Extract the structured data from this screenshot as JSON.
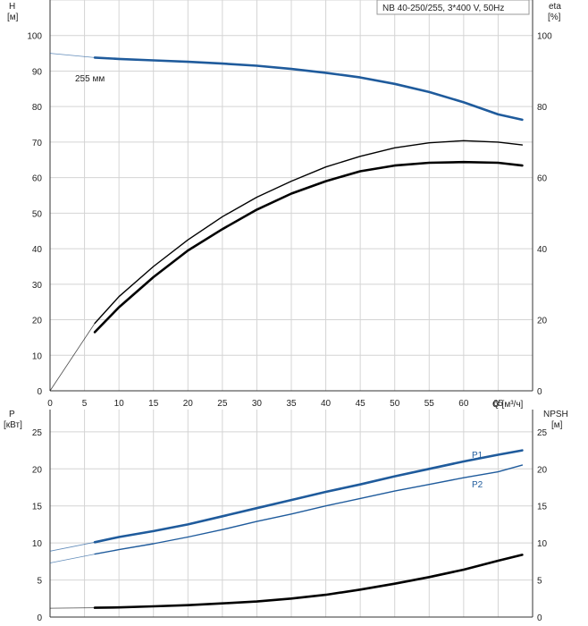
{
  "chart_data": [
    {
      "type": "line",
      "title": "NB 40-250/255, 3*400 V, 50Hz",
      "xlabel": "Q [м³/ч]",
      "ylabel_left": "H [м]",
      "ylabel_left_unit": "[м]",
      "ylabel_left_name": "H",
      "ylabel_right_name": "eta",
      "ylabel_right_unit": "[%]",
      "xlim": [
        0,
        70
      ],
      "ylim_left": [
        0,
        110
      ],
      "ylim_right": [
        0,
        110
      ],
      "x_ticks": [
        0,
        5,
        10,
        15,
        20,
        25,
        30,
        35,
        40,
        45,
        50,
        55,
        60,
        65
      ],
      "y_ticks_left": [
        0,
        10,
        20,
        30,
        40,
        50,
        60,
        70,
        80,
        90,
        100
      ],
      "y_ticks_right": [
        0,
        20,
        40,
        60,
        80,
        100
      ],
      "grid": true,
      "annotation": "255 мм",
      "colors": {
        "head": "#1f5b9c",
        "eta": "#000000",
        "grid": "#d0d0d0"
      },
      "series": [
        {
          "name": "",
          "axis": "left",
          "key": "head",
          "x": [
            0,
            6.5,
            10,
            15,
            20,
            25,
            30,
            35,
            40,
            45,
            50,
            55,
            60,
            65,
            68.5
          ],
          "y": [
            95,
            93.8,
            93.4,
            93,
            92.6,
            92.1,
            91.5,
            90.6,
            89.5,
            88.2,
            86.4,
            84.1,
            81.2,
            77.8,
            76.3
          ],
          "extrapolated_below": 6.5
        },
        {
          "name": "",
          "axis": "right",
          "key": "eta_thin",
          "x": [
            0,
            6.5,
            10,
            15,
            20,
            25,
            30,
            35,
            40,
            45,
            50,
            55,
            60,
            65,
            68.5
          ],
          "y": [
            0,
            19,
            26.5,
            35,
            42.5,
            49,
            54.5,
            59,
            63,
            66,
            68.4,
            69.8,
            70.4,
            70,
            69.2
          ],
          "extrapolated_below": 6.5
        },
        {
          "name": "",
          "axis": "right",
          "key": "eta_thick",
          "x": [
            6.5,
            10,
            15,
            20,
            25,
            30,
            35,
            40,
            45,
            50,
            55,
            60,
            65,
            68.5
          ],
          "y": [
            16.5,
            23.5,
            32,
            39.5,
            45.5,
            51,
            55.5,
            59,
            61.8,
            63.4,
            64.2,
            64.4,
            64.2,
            63.4
          ]
        }
      ]
    },
    {
      "type": "line",
      "xlim": [
        0,
        70
      ],
      "ylim_left": [
        0,
        28
      ],
      "ylim_right": [
        0,
        28
      ],
      "ylabel_left_name": "P",
      "ylabel_left_unit": "[кВт]",
      "ylabel_right_name": "NPSH",
      "ylabel_right_unit": "[м]",
      "y_ticks_left": [
        0,
        5,
        10,
        15,
        20,
        25
      ],
      "y_ticks_right": [
        0,
        5,
        10,
        15,
        20,
        25
      ],
      "grid": true,
      "colors": {
        "p1": "#1f5b9c",
        "p2": "#1f5b9c",
        "npsh": "#000000"
      },
      "series": [
        {
          "name": "P1",
          "axis": "left",
          "key": "p1",
          "x": [
            0,
            6.5,
            10,
            15,
            20,
            25,
            30,
            35,
            40,
            45,
            50,
            55,
            60,
            65,
            68.5
          ],
          "y": [
            8.9,
            10.1,
            10.8,
            11.6,
            12.5,
            13.6,
            14.7,
            15.8,
            16.9,
            17.9,
            19.0,
            20.0,
            21.0,
            21.9,
            22.5
          ],
          "extrapolated_below": 6.5
        },
        {
          "name": "P2",
          "axis": "left",
          "key": "p2",
          "x": [
            0,
            6.5,
            10,
            15,
            20,
            25,
            30,
            35,
            40,
            45,
            50,
            55,
            60,
            65,
            68.5
          ],
          "y": [
            7.3,
            8.5,
            9.1,
            9.9,
            10.8,
            11.8,
            12.9,
            13.9,
            15.0,
            16.0,
            17.0,
            17.9,
            18.8,
            19.6,
            20.5
          ],
          "extrapolated_below": 6.5
        },
        {
          "name": "",
          "axis": "right",
          "key": "npsh",
          "x": [
            0,
            6.5,
            10,
            15,
            20,
            25,
            30,
            35,
            40,
            45,
            50,
            55,
            60,
            65,
            68.5
          ],
          "y": [
            1.2,
            1.25,
            1.3,
            1.45,
            1.6,
            1.85,
            2.1,
            2.5,
            3.0,
            3.7,
            4.5,
            5.4,
            6.4,
            7.6,
            8.4
          ],
          "extrapolated_below": 6.5
        }
      ]
    }
  ]
}
